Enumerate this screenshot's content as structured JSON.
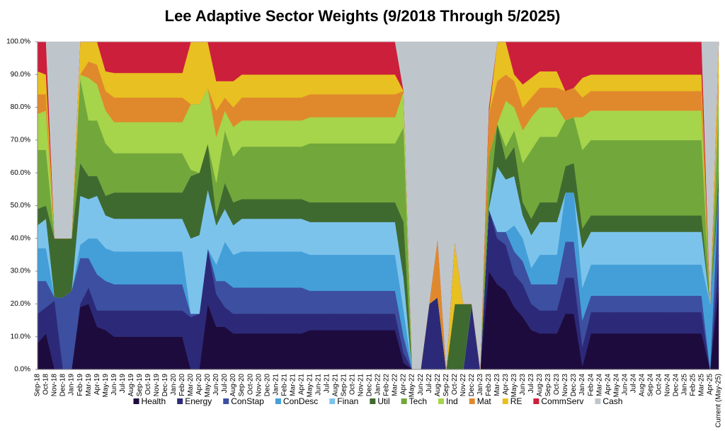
{
  "chart_data": {
    "type": "stacked_area",
    "title": "Lee Adaptive Sector Weights (9/2018 Through 5/2025)",
    "categories": [
      "Sep-18",
      "Oct-18",
      "Nov-18",
      "Dec-18",
      "Jan-19",
      "Feb-19",
      "Mar-19",
      "Apr-19",
      "May-19",
      "Jun-19",
      "Jul-19",
      "Aug-19",
      "Sep-19",
      "Oct-19",
      "Nov-19",
      "Dec-19",
      "Jan-20",
      "Feb-20",
      "Mar-20",
      "Apr-20",
      "May-20",
      "Jun-20",
      "Jul-20",
      "Aug-20",
      "Sep-20",
      "Oct-20",
      "Nov-20",
      "Dec-20",
      "Jan-21",
      "Feb-21",
      "Mar-21",
      "Apr-21",
      "May-21",
      "Jun-21",
      "Jul-21",
      "Aug-21",
      "Sep-21",
      "Oct-21",
      "Nov-21",
      "Dec-21",
      "Jan-22",
      "Feb-22",
      "Mar-22",
      "Apr-22",
      "May-22",
      "Jun-22",
      "Jul-22",
      "Aug-22",
      "Sep-22",
      "Oct-22",
      "Nov-22",
      "Dec-22",
      "Jan-23",
      "Feb-23",
      "Mar-23",
      "Apr-23",
      "May-23",
      "Jun-23",
      "Jul-23",
      "Aug-23",
      "Sep-23",
      "Oct-23",
      "Nov-23",
      "Dec-23",
      "Jan-24",
      "Feb-24",
      "Mar-24",
      "Apr-24",
      "May-24",
      "Jun-24",
      "Jul-24",
      "Aug-24",
      "Sep-24",
      "Oct-24",
      "Nov-24",
      "Dec-24",
      "Jan-25",
      "Feb-25",
      "Mar-25",
      "Apr-25",
      "Current (May-25)"
    ],
    "ylim": [
      0,
      100
    ],
    "yticks": [
      {
        "value": 0,
        "label": "0.0%"
      },
      {
        "value": 10,
        "label": "10.0%"
      },
      {
        "value": 20,
        "label": "20.0%"
      },
      {
        "value": 30,
        "label": "30.0%"
      },
      {
        "value": 40,
        "label": "40.0%"
      },
      {
        "value": 50,
        "label": "50.0%"
      },
      {
        "value": 60,
        "label": "60.0%"
      },
      {
        "value": 70,
        "label": "70.0%"
      },
      {
        "value": 80,
        "label": "80.0%"
      },
      {
        "value": 90,
        "label": "90.0%"
      },
      {
        "value": 100,
        "label": "100.0%"
      }
    ],
    "grid": false,
    "legend": "bottom",
    "series": [
      {
        "name": "Health",
        "color": "#1e0b3e",
        "values": [
          8,
          11,
          0,
          0,
          0,
          19,
          20,
          13,
          12,
          10,
          10,
          10,
          10,
          10,
          10,
          10,
          10,
          10,
          0,
          0,
          20,
          13,
          13,
          11,
          11,
          11,
          11,
          11,
          11,
          11,
          11,
          11,
          12,
          12,
          12,
          12,
          12,
          12,
          12,
          12,
          12,
          12,
          12,
          2,
          0,
          0,
          0,
          0,
          0,
          0,
          0,
          0,
          0,
          30,
          26,
          24,
          19,
          16,
          12,
          11,
          11,
          11,
          17,
          17,
          1,
          11,
          11,
          11,
          11,
          11,
          11,
          11,
          11,
          11,
          11,
          11,
          11,
          11,
          11,
          0,
          25
        ]
      },
      {
        "name": "Energy",
        "color": "#2c2a78",
        "values": [
          9,
          8,
          21,
          0,
          0,
          1,
          5,
          5,
          6,
          8,
          8,
          8,
          8,
          8,
          8,
          8,
          8,
          8,
          16,
          17,
          17,
          10,
          6,
          6,
          6,
          6,
          6,
          6,
          6,
          6,
          6,
          6,
          5,
          5,
          5,
          5,
          5,
          5,
          5,
          5,
          5,
          5,
          5,
          3,
          0,
          0,
          20,
          22,
          0,
          0,
          0,
          20,
          0,
          19,
          14,
          14,
          10,
          10,
          8,
          7,
          7,
          7,
          11,
          11,
          6,
          6.5,
          6.5,
          6.5,
          6.5,
          6.5,
          6.5,
          6.5,
          6.5,
          6.5,
          6.5,
          6.5,
          6.5,
          6.5,
          6.5,
          0,
          10
        ]
      },
      {
        "name": "ConStap",
        "color": "#3d4fa0",
        "values": [
          10,
          8,
          1,
          22,
          24,
          14,
          9,
          11,
          9,
          8,
          8,
          8,
          8,
          8,
          8,
          8,
          8,
          8,
          1,
          0,
          0,
          4,
          8,
          8,
          8,
          8,
          8,
          8,
          8,
          8,
          8,
          8,
          7,
          7,
          7,
          7,
          7,
          7,
          7,
          7,
          7,
          7,
          7,
          5,
          0,
          0,
          0,
          0,
          0,
          0,
          0,
          0,
          0,
          0,
          2,
          4,
          7,
          7,
          6,
          8,
          8,
          8,
          11,
          11,
          8,
          5,
          5,
          5,
          5,
          5,
          5,
          5,
          5,
          5,
          5,
          5,
          5,
          5,
          5,
          0,
          20
        ]
      },
      {
        "name": "ConDesc",
        "color": "#449fd8",
        "values": [
          10,
          10,
          0,
          0,
          0,
          4,
          6,
          11,
          10,
          10,
          10,
          10,
          10,
          10,
          10,
          10,
          10,
          10,
          0,
          0,
          0,
          5,
          12,
          10,
          11,
          11,
          11,
          11,
          11,
          11,
          11,
          11,
          11,
          11,
          11,
          11,
          11,
          11,
          11,
          11,
          11,
          11,
          11,
          8,
          0,
          0,
          0,
          0,
          0,
          0,
          0,
          0,
          0,
          0,
          0,
          0,
          8,
          7,
          5,
          9,
          9,
          9,
          15,
          15,
          10,
          9.5,
          9.5,
          9.5,
          9.5,
          9.5,
          9.5,
          9.5,
          9.5,
          9.5,
          9.5,
          9.5,
          9.5,
          9.5,
          9.5,
          20,
          0
        ]
      },
      {
        "name": "Finan",
        "color": "#7cc3ec",
        "values": [
          7,
          9,
          0,
          0,
          0,
          15,
          12,
          13,
          10,
          10,
          10,
          10,
          10,
          10,
          10,
          10,
          10,
          10,
          23,
          24,
          18,
          12,
          10,
          9,
          10,
          10,
          10,
          10,
          10,
          10,
          10,
          10,
          10,
          10,
          10,
          10,
          10,
          10,
          10,
          10,
          10,
          10,
          10,
          10,
          0,
          0,
          0,
          0,
          0,
          0,
          0,
          0,
          0,
          0,
          20,
          16,
          15,
          7,
          10,
          10,
          10,
          10,
          0,
          0,
          12,
          10,
          10,
          10,
          10,
          10,
          10,
          10,
          10,
          10,
          10,
          10,
          10,
          10,
          10,
          0,
          0
        ]
      },
      {
        "name": "Util",
        "color": "#3f6a2f",
        "values": [
          5,
          4,
          18,
          18,
          16,
          10,
          7,
          6,
          6,
          8,
          8,
          8,
          8,
          8,
          8,
          8,
          8,
          8,
          19,
          19,
          14,
          3,
          8,
          7,
          6,
          6,
          6,
          6,
          6,
          6,
          6,
          6,
          6,
          6,
          6,
          6,
          6,
          6,
          6,
          6,
          6,
          6,
          6,
          17,
          0,
          0,
          0,
          0,
          0,
          20,
          20,
          0,
          0,
          1,
          13,
          6,
          9,
          4,
          5,
          6,
          6,
          6,
          8,
          9,
          6,
          5,
          5,
          5,
          5,
          5,
          5,
          5,
          5,
          5,
          5,
          5,
          5,
          5,
          5,
          0,
          5
        ]
      },
      {
        "name": "Tech",
        "color": "#72a73c",
        "values": [
          18,
          17,
          0,
          0,
          0,
          26,
          17,
          17,
          16,
          12,
          12,
          12,
          12,
          12,
          12,
          12,
          12,
          12,
          2,
          0,
          0,
          10,
          16,
          14,
          16,
          16,
          16,
          16,
          16,
          16,
          16,
          16,
          18,
          18,
          18,
          18,
          18,
          18,
          18,
          18,
          18,
          18,
          18,
          29,
          0,
          0,
          0,
          0,
          0,
          0,
          0,
          0,
          0,
          15,
          0,
          4,
          5,
          12,
          21,
          20,
          20,
          20,
          14,
          14,
          24,
          23,
          23,
          23,
          23,
          23,
          23,
          23,
          23,
          23,
          23,
          23,
          23,
          23,
          23,
          0,
          20
        ]
      },
      {
        "name": "Ind",
        "color": "#a6d44b",
        "values": [
          11,
          12,
          0,
          0,
          0,
          1,
          13,
          11,
          10,
          9.5,
          9.5,
          9.5,
          9.5,
          9.5,
          9.5,
          9.5,
          9.5,
          9.5,
          20,
          21,
          17,
          14,
          6,
          9,
          8,
          8,
          8,
          8,
          8,
          8,
          8,
          8,
          8,
          8,
          8,
          8,
          8,
          8,
          8,
          8,
          8,
          8,
          8,
          11,
          0,
          0,
          0,
          0,
          0,
          0,
          0,
          0,
          0,
          0,
          0,
          14,
          7,
          10,
          10,
          9,
          9,
          9,
          0,
          0,
          10,
          9,
          9,
          9,
          9,
          9,
          9,
          9,
          9,
          9,
          9,
          9,
          9,
          9,
          9,
          0,
          5
        ]
      },
      {
        "name": "Mat",
        "color": "#e0892c",
        "values": [
          6,
          5,
          0,
          0,
          0,
          0,
          5,
          6,
          6,
          7.5,
          7.5,
          7.5,
          7.5,
          7.5,
          7.5,
          7.5,
          7.5,
          7.5,
          0,
          0,
          0,
          8,
          4,
          6,
          7,
          7,
          7,
          7,
          7,
          7,
          7,
          7,
          7,
          7,
          7,
          7,
          7,
          7,
          7,
          7,
          7,
          7,
          7,
          0,
          0,
          0,
          0,
          18,
          0,
          0,
          0,
          0,
          0,
          13,
          13,
          8,
          8,
          7,
          6,
          6,
          6,
          6,
          9,
          9,
          6,
          6,
          6,
          6,
          6,
          6,
          6,
          6,
          6,
          6,
          6,
          6,
          6,
          6,
          6,
          0,
          5
        ]
      },
      {
        "name": "RE",
        "color": "#e8c021",
        "values": [
          7,
          6,
          0,
          0,
          0,
          10,
          6,
          7,
          6,
          7.5,
          7.5,
          7.5,
          7.5,
          7.5,
          7.5,
          7.5,
          7.5,
          7.5,
          19,
          19,
          14,
          9,
          5,
          8,
          7,
          7,
          7,
          7,
          7,
          7,
          7,
          7,
          6,
          6,
          6,
          6,
          6,
          6,
          6,
          6,
          6,
          6,
          6,
          0,
          0,
          0,
          0,
          0,
          0,
          19,
          0,
          0,
          0,
          0,
          12,
          10,
          2,
          7,
          6,
          5,
          5,
          5,
          0,
          0,
          6,
          5,
          5,
          5,
          5,
          5,
          5,
          5,
          5,
          5,
          5,
          5,
          5,
          5,
          5,
          0,
          10
        ]
      },
      {
        "name": "CommServ",
        "color": "#cc1f3b",
        "values": [
          9,
          10,
          0,
          0,
          0,
          0,
          0,
          0,
          9,
          9.5,
          9.5,
          9.5,
          9.5,
          9.5,
          9.5,
          9.5,
          9.5,
          9.5,
          0,
          0,
          0,
          12,
          12,
          12,
          10,
          10,
          10,
          10,
          10,
          10,
          10,
          10,
          10,
          10,
          10,
          10,
          10,
          10,
          10,
          10,
          10,
          10,
          10,
          0,
          0,
          0,
          0,
          0,
          0,
          0,
          0,
          0,
          0,
          2,
          0,
          0,
          10,
          13,
          11,
          9,
          9,
          9,
          15,
          14,
          11,
          10,
          10,
          10,
          10,
          10,
          10,
          10,
          10,
          10,
          10,
          10,
          10,
          10,
          10,
          0,
          0
        ]
      },
      {
        "name": "Cash",
        "color": "#bfc6cb",
        "values": [
          0,
          0,
          60,
          60,
          60,
          0,
          0,
          0,
          0,
          0,
          0,
          0,
          0,
          0,
          0,
          0,
          0,
          0,
          0,
          0,
          0,
          0,
          0,
          0,
          0,
          0,
          0,
          0,
          0,
          0,
          0,
          0,
          0,
          0,
          0,
          0,
          0,
          0,
          0,
          0,
          0,
          0,
          0,
          15,
          100,
          100,
          80,
          60,
          100,
          61,
          80,
          80,
          100,
          20,
          0,
          0,
          0,
          0,
          0,
          0,
          0,
          0,
          0,
          0,
          0,
          0,
          0,
          0,
          0,
          0,
          0,
          0,
          0,
          0,
          0,
          0,
          0,
          0,
          0,
          80,
          0
        ]
      }
    ]
  }
}
